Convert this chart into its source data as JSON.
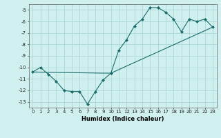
{
  "xlabel": "Humidex (Indice chaleur)",
  "ylabel": "",
  "bg_color": "#cff0ee",
  "grid_color": "#aad8d4",
  "line_color": "#1a6b6b",
  "line1_x": [
    0,
    1,
    2,
    3,
    4,
    5,
    6,
    7,
    8,
    9,
    10,
    11,
    12,
    13,
    14,
    15,
    16,
    17,
    18,
    19,
    20,
    21,
    22,
    23
  ],
  "line1_y": [
    -10.4,
    -10.0,
    -10.6,
    -11.2,
    -12.0,
    -12.1,
    -12.1,
    -13.2,
    -12.1,
    -11.1,
    -10.5,
    -8.5,
    -7.6,
    -6.4,
    -5.8,
    -4.8,
    -4.8,
    -5.2,
    -5.8,
    -6.9,
    -5.8,
    -6.0,
    -5.8,
    -6.5
  ],
  "line2_x": [
    0,
    9,
    10,
    23
  ],
  "line2_y": [
    -10.4,
    -10.5,
    -10.5,
    -6.5
  ],
  "xlim": [
    -0.5,
    23.5
  ],
  "ylim": [
    -13.5,
    -4.5
  ],
  "yticks": [
    -13,
    -12,
    -11,
    -10,
    -9,
    -8,
    -7,
    -6,
    -5
  ],
  "xticks": [
    0,
    1,
    2,
    3,
    4,
    5,
    6,
    7,
    8,
    9,
    10,
    11,
    12,
    13,
    14,
    15,
    16,
    17,
    18,
    19,
    20,
    21,
    22,
    23
  ],
  "xtick_labels": [
    "0",
    "1",
    "2",
    "3",
    "4",
    "5",
    "6",
    "7",
    "8",
    "9",
    "10",
    "11",
    "12",
    "13",
    "14",
    "15",
    "16",
    "17",
    "18",
    "19",
    "20",
    "21",
    "22",
    "23"
  ],
  "marker": "D",
  "markersize": 2.0,
  "linewidth": 0.8,
  "tick_fontsize": 5.0,
  "xlabel_fontsize": 6.0
}
